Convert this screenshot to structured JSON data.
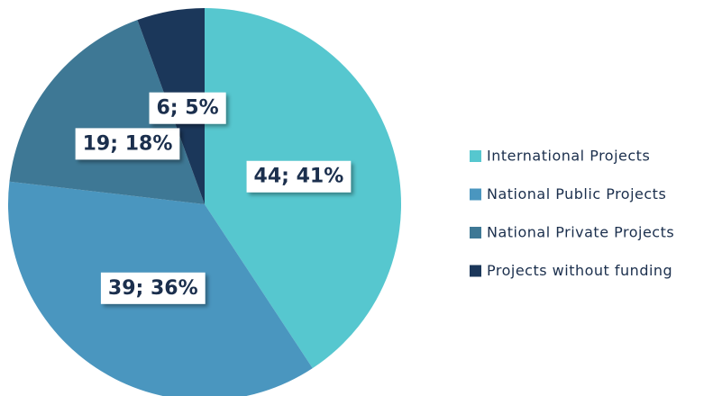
{
  "chart_data": {
    "type": "pie",
    "categories": [
      "International Projects",
      "National Public Projects",
      "National Private Projects",
      "Projects without funding"
    ],
    "values": [
      44,
      39,
      19,
      6
    ],
    "value_labels": [
      "44; 41%",
      "39; 36%",
      "19; 18%",
      "6; 5%"
    ],
    "colors": [
      "#56c7cf",
      "#4a96bf",
      "#3e7895",
      "#1b375a"
    ],
    "legend": "right"
  }
}
